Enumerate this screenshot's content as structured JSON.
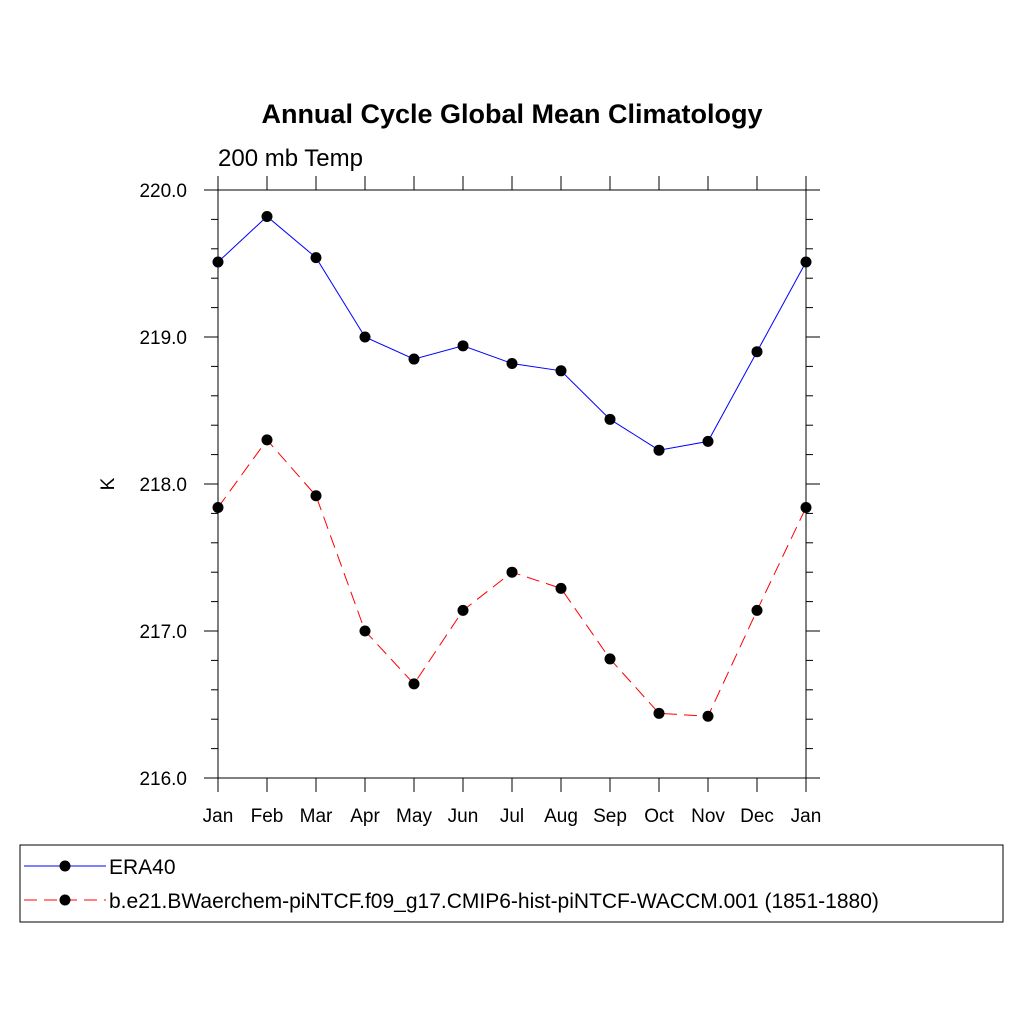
{
  "chart_data": {
    "type": "line",
    "title": "Annual Cycle Global Mean Climatology",
    "subtitle": "200 mb Temp",
    "xlabel": "",
    "ylabel": "K",
    "categories": [
      "Jan",
      "Feb",
      "Mar",
      "Apr",
      "May",
      "Jun",
      "Jul",
      "Aug",
      "Sep",
      "Oct",
      "Nov",
      "Dec",
      "Jan"
    ],
    "ylim": [
      216.0,
      220.0
    ],
    "yticks": [
      "216.0",
      "217.0",
      "218.0",
      "219.0",
      "220.0"
    ],
    "grid": false,
    "legend_position": "bottom",
    "series": [
      {
        "name": "ERA40",
        "color": "#0000ff",
        "line_style": "solid",
        "marker": "filled-circle",
        "values": [
          219.51,
          219.82,
          219.54,
          219.0,
          218.85,
          218.94,
          218.82,
          218.77,
          218.44,
          218.23,
          218.29,
          218.9,
          219.51
        ]
      },
      {
        "name": "b.e21.BWaerchem-piNTCF.f09_g17.CMIP6-hist-piNTCF-WACCM.001 (1851-1880)",
        "color": "#ff0000",
        "line_style": "dashed",
        "marker": "filled-circle",
        "values": [
          217.84,
          218.3,
          217.92,
          217.0,
          216.64,
          217.14,
          217.4,
          217.29,
          216.81,
          216.44,
          216.42,
          217.14,
          217.84
        ]
      }
    ]
  }
}
